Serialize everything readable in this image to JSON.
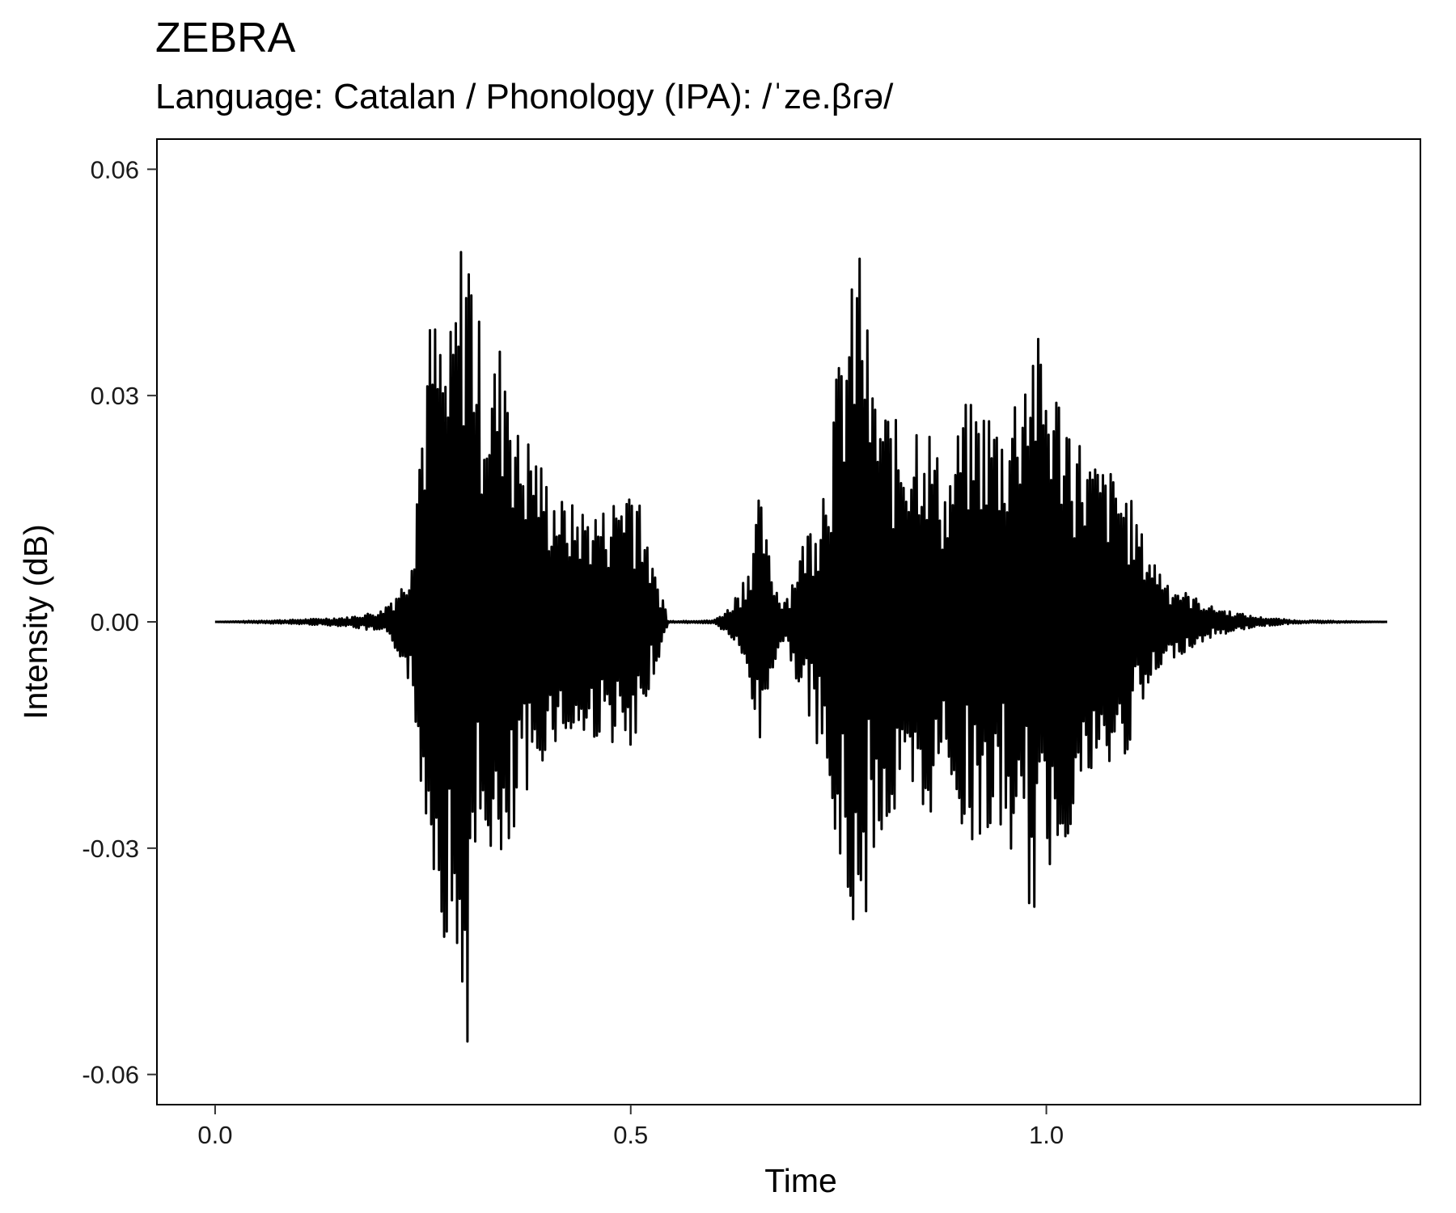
{
  "chart_data": {
    "type": "line",
    "title": "ZEBRA",
    "subtitle": "Language: Catalan / Phonology (IPA): /ˈze.βɾə/",
    "xlabel": "Time",
    "ylabel": "Intensity (dB)",
    "xlim": [
      -0.07,
      1.45
    ],
    "ylim": [
      -0.064,
      0.064
    ],
    "x_ticks": [
      0.0,
      0.5,
      1.0
    ],
    "x_tick_labels": [
      "0.0",
      "0.5",
      "1.0"
    ],
    "y_ticks": [
      0.06,
      0.03,
      0.0,
      -0.03,
      -0.06
    ],
    "y_tick_labels": [
      "0.06",
      "0.03",
      "0.00",
      "-0.03",
      "-0.06"
    ],
    "grid": false,
    "series_color": "#000000",
    "series": [
      {
        "x": [
          0.0,
          0.1,
          0.16,
          0.2,
          0.225,
          0.235,
          0.245,
          0.26,
          0.28,
          0.293,
          0.3,
          0.305,
          0.315,
          0.33,
          0.35,
          0.365,
          0.38,
          0.4,
          0.42,
          0.45,
          0.47,
          0.5,
          0.51,
          0.52,
          0.53,
          0.54,
          0.545,
          0.6,
          0.62,
          0.64,
          0.655,
          0.665,
          0.67,
          0.68,
          0.69,
          0.705,
          0.73,
          0.75,
          0.77,
          0.775,
          0.78,
          0.79,
          0.8,
          0.83,
          0.85,
          0.88,
          0.9,
          0.93,
          0.95,
          0.97,
          0.985,
          1.0,
          1.02,
          1.05,
          1.08,
          1.1,
          1.12,
          1.15,
          1.2,
          1.25,
          1.3,
          1.41
        ],
        "upper": [
          0.0,
          0.0003,
          0.0006,
          0.0015,
          0.005,
          0.009,
          0.024,
          0.042,
          0.036,
          0.047,
          0.058,
          0.054,
          0.042,
          0.033,
          0.04,
          0.025,
          0.025,
          0.019,
          0.016,
          0.015,
          0.015,
          0.02,
          0.019,
          0.01,
          0.006,
          0.003,
          0.0001,
          0.0002,
          0.002,
          0.007,
          0.017,
          0.01,
          0.007,
          0.003,
          0.004,
          0.01,
          0.018,
          0.035,
          0.047,
          0.053,
          0.046,
          0.032,
          0.03,
          0.025,
          0.03,
          0.018,
          0.029,
          0.029,
          0.026,
          0.035,
          0.04,
          0.034,
          0.03,
          0.022,
          0.02,
          0.017,
          0.01,
          0.005,
          0.002,
          0.0007,
          0.0002,
          0.0
        ],
        "lower": [
          0.0,
          -0.0003,
          -0.0006,
          -0.0015,
          -0.005,
          -0.009,
          -0.02,
          -0.031,
          -0.045,
          -0.047,
          -0.058,
          -0.055,
          -0.032,
          -0.03,
          -0.04,
          -0.025,
          -0.025,
          -0.016,
          -0.016,
          -0.016,
          -0.015,
          -0.019,
          -0.019,
          -0.01,
          -0.006,
          -0.003,
          -0.0001,
          -0.0002,
          -0.002,
          -0.007,
          -0.017,
          -0.01,
          -0.007,
          -0.003,
          -0.004,
          -0.01,
          -0.018,
          -0.035,
          -0.042,
          -0.053,
          -0.044,
          -0.03,
          -0.03,
          -0.025,
          -0.03,
          -0.018,
          -0.029,
          -0.029,
          -0.029,
          -0.035,
          -0.04,
          -0.034,
          -0.03,
          -0.022,
          -0.02,
          -0.017,
          -0.01,
          -0.005,
          -0.002,
          -0.0007,
          -0.0002,
          0.0
        ]
      }
    ]
  }
}
